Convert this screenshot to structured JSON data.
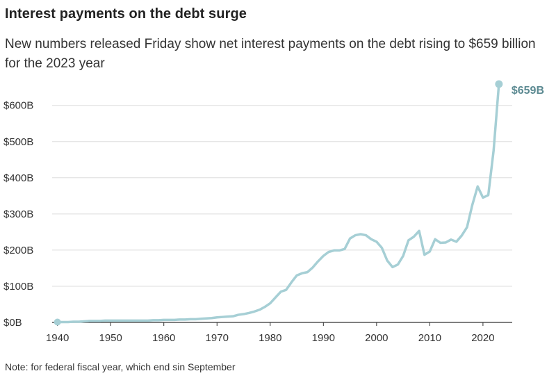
{
  "title": "Interest payments on the debt surge",
  "subtitle": "New numbers released Friday show net interest payments on the debt rising to $659 billion for the 2023 year",
  "note": "Note: for federal fiscal year, which end sin September",
  "colors": {
    "line": "#a6cfd5",
    "endlabel": "#5c8a92",
    "grid": "#dddddd",
    "axis": "#333333"
  },
  "chart_data": {
    "type": "line",
    "title": "Interest payments on the debt surge",
    "xlabel": "",
    "ylabel": "",
    "xlim": [
      1939,
      2025.5
    ],
    "ylim": [
      0,
      659
    ],
    "grid": true,
    "xticks": [
      1940,
      1950,
      1960,
      1970,
      1980,
      1990,
      2000,
      2010,
      2020
    ],
    "xtick_labels": [
      "1940",
      "1950",
      "1960",
      "1970",
      "1980",
      "1990",
      "2000",
      "2010",
      "2020"
    ],
    "yticks": [
      0,
      100,
      200,
      300,
      400,
      500,
      600
    ],
    "ytick_labels": [
      "$0B",
      "$100B",
      "$200B",
      "$300B",
      "$400B",
      "$500B",
      "$600B"
    ],
    "end_label": "$659B",
    "x": [
      1940,
      1941,
      1942,
      1943,
      1944,
      1945,
      1946,
      1947,
      1948,
      1949,
      1950,
      1951,
      1952,
      1953,
      1954,
      1955,
      1956,
      1957,
      1958,
      1959,
      1960,
      1961,
      1962,
      1963,
      1964,
      1965,
      1966,
      1967,
      1968,
      1969,
      1970,
      1971,
      1972,
      1973,
      1974,
      1975,
      1976,
      1977,
      1978,
      1979,
      1980,
      1981,
      1982,
      1983,
      1984,
      1985,
      1986,
      1987,
      1988,
      1989,
      1990,
      1991,
      1992,
      1993,
      1994,
      1995,
      1996,
      1997,
      1998,
      1999,
      2000,
      2001,
      2002,
      2003,
      2004,
      2005,
      2006,
      2007,
      2008,
      2009,
      2010,
      2011,
      2012,
      2013,
      2014,
      2015,
      2016,
      2017,
      2018,
      2019,
      2020,
      2021,
      2022,
      2023
    ],
    "y": [
      1,
      1,
      1,
      2,
      2,
      3,
      4,
      4,
      4,
      5,
      5,
      5,
      5,
      5,
      5,
      5,
      5,
      5,
      6,
      6,
      7,
      7,
      7,
      8,
      8,
      9,
      9,
      10,
      11,
      12,
      14,
      15,
      16,
      17,
      21,
      23,
      26,
      30,
      35,
      43,
      53,
      69,
      85,
      90,
      111,
      130,
      136,
      139,
      152,
      169,
      184,
      195,
      199,
      199,
      203,
      232,
      241,
      244,
      241,
      230,
      223,
      206,
      171,
      153,
      160,
      184,
      227,
      237,
      253,
      187,
      196,
      230,
      220,
      221,
      229,
      223,
      240,
      263,
      325,
      376,
      345,
      352,
      475,
      659
    ]
  }
}
